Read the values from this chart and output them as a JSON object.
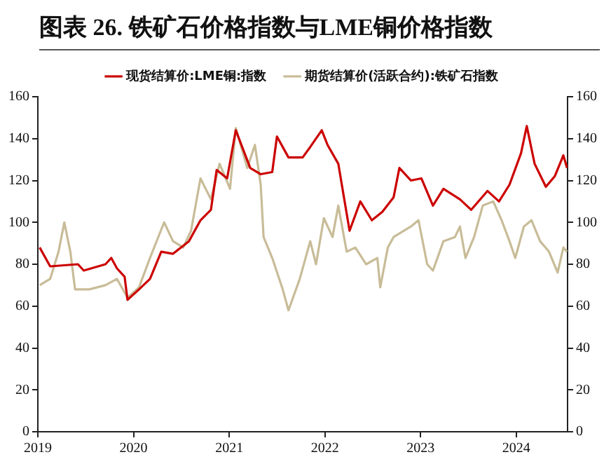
{
  "chart_data": {
    "type": "line",
    "title": "图表 26. 铁矿石价格指数与LME铜价格指数",
    "legend": "top",
    "grid": false,
    "marker": "none",
    "line_style": "solid",
    "xlim": [
      "2019-01-01",
      "2024-07-15"
    ],
    "xticks": [
      "2019",
      "2020",
      "2021",
      "2022",
      "2023",
      "2024"
    ],
    "ylim": [
      0,
      160
    ],
    "yticks": [
      0,
      20,
      40,
      60,
      80,
      100,
      120,
      140,
      160
    ],
    "y2lim": [
      0,
      160
    ],
    "y2ticks": [
      0,
      20,
      40,
      60,
      80,
      100,
      120,
      140,
      160
    ],
    "series": [
      {
        "name": "现货结算价:LME铜:指数",
        "color": "#cc0000",
        "x": [
          "2019-01-08",
          "2019-02-17",
          "2019-06-03",
          "2019-06-25",
          "2019-09-16",
          "2019-10-08",
          "2019-10-30",
          "2019-11-28",
          "2019-12-09",
          "2020-01-22",
          "2020-03-04",
          "2020-04-16",
          "2020-05-31",
          "2020-07-31",
          "2020-09-13",
          "2020-10-23",
          "2020-11-14",
          "2020-12-24",
          "2021-01-26",
          "2021-03-22",
          "2021-05-01",
          "2021-06-14",
          "2021-07-02",
          "2021-08-15",
          "2021-10-08",
          "2021-11-06",
          "2021-12-20",
          "2022-01-11",
          "2022-02-21",
          "2022-04-05",
          "2022-05-16",
          "2022-06-29",
          "2022-08-08",
          "2022-09-20",
          "2022-10-12",
          "2022-11-25",
          "2023-01-04",
          "2023-02-17",
          "2023-03-29",
          "2023-05-31",
          "2023-07-13",
          "2023-09-13",
          "2023-10-27",
          "2023-12-06",
          "2024-01-19",
          "2024-02-10",
          "2024-03-11",
          "2024-04-23",
          "2024-05-27",
          "2024-06-29",
          "2024-07-13"
        ],
        "values": [
          88,
          79,
          80,
          77,
          80,
          83,
          78,
          74,
          63,
          68,
          73,
          86,
          85,
          91,
          101,
          106,
          125,
          121,
          144,
          126,
          123,
          124,
          141,
          131,
          131,
          136,
          144,
          137,
          128,
          96,
          110,
          101,
          105,
          112,
          126,
          120,
          121,
          108,
          116,
          111,
          106,
          115,
          110,
          118,
          133,
          146,
          128,
          117,
          122,
          132,
          126
        ]
      },
      {
        "name": "期货结算价(活跃合约):铁矿石指数",
        "color": "#c8bc98",
        "x": [
          "2019-01-08",
          "2019-02-17",
          "2019-03-21",
          "2019-04-12",
          "2019-05-05",
          "2019-05-23",
          "2019-07-16",
          "2019-09-16",
          "2019-10-30",
          "2019-12-09",
          "2020-01-22",
          "2020-03-04",
          "2020-04-27",
          "2020-05-31",
          "2020-07-09",
          "2020-08-08",
          "2020-09-13",
          "2020-10-23",
          "2020-11-25",
          "2021-01-04",
          "2021-01-26",
          "2021-03-11",
          "2021-04-09",
          "2021-05-01",
          "2021-05-12",
          "2021-06-14",
          "2021-07-24",
          "2021-08-15",
          "2021-09-27",
          "2021-11-06",
          "2021-11-28",
          "2021-12-28",
          "2022-01-30",
          "2022-02-21",
          "2022-03-25",
          "2022-04-27",
          "2022-06-07",
          "2022-07-20",
          "2022-07-31",
          "2022-08-29",
          "2022-09-20",
          "2022-11-25",
          "2022-12-24",
          "2023-01-26",
          "2023-02-17",
          "2023-03-29",
          "2023-05-12",
          "2023-05-31",
          "2023-06-21",
          "2023-07-24",
          "2023-08-26",
          "2023-10-05",
          "2023-11-06",
          "2023-12-06",
          "2023-12-28",
          "2024-01-30",
          "2024-02-28",
          "2024-04-01",
          "2024-05-05",
          "2024-06-07",
          "2024-06-29",
          "2024-07-13"
        ],
        "values": [
          70,
          73,
          86,
          100,
          86,
          68,
          68,
          70,
          73,
          64,
          69,
          83,
          100,
          91,
          88,
          96,
          121,
          111,
          128,
          116,
          145,
          126,
          137,
          118,
          93,
          83,
          68,
          58,
          73,
          91,
          80,
          102,
          93,
          108,
          86,
          88,
          80,
          83,
          69,
          88,
          93,
          98,
          101,
          80,
          77,
          91,
          93,
          98,
          83,
          93,
          108,
          110,
          101,
          91,
          83,
          98,
          101,
          91,
          86,
          76,
          88,
          86
        ]
      }
    ]
  }
}
